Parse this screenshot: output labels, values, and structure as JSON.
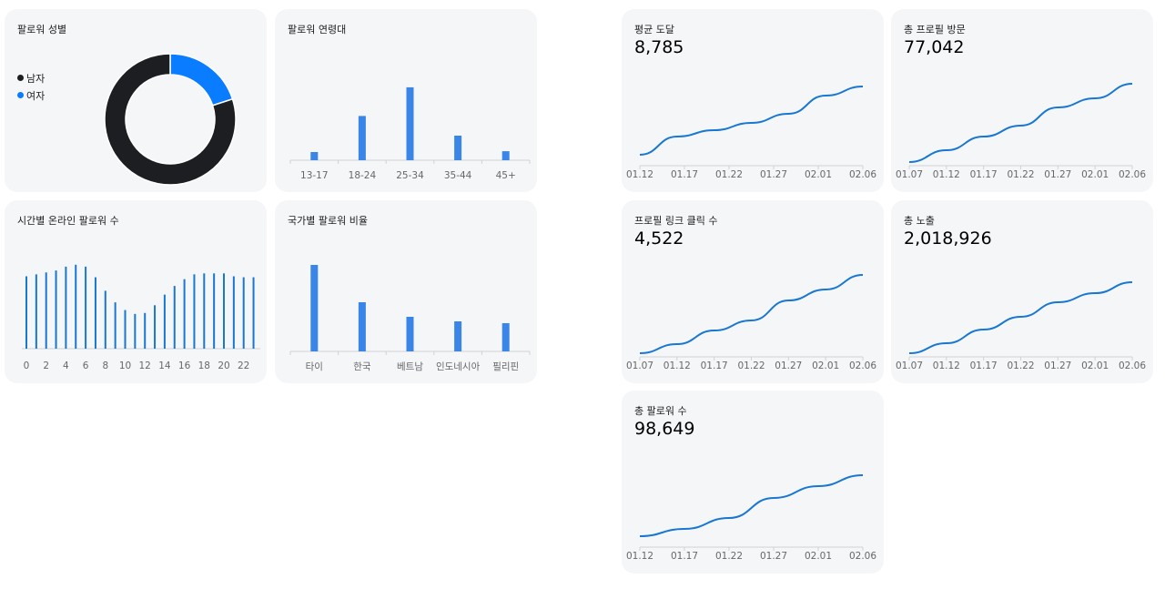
{
  "colors": {
    "accent": "#1877d2",
    "bar": "#3a86e8",
    "dark": "#1c1e21",
    "axis": "#cfd3d8"
  },
  "gender_card": {
    "title": "팔로워 성별",
    "legend": [
      {
        "label": "남자",
        "color": "#1c1e21"
      },
      {
        "label": "여자",
        "color": "#0a7cff"
      }
    ],
    "chart_data": {
      "type": "pie",
      "categories": [
        "남자",
        "여자"
      ],
      "values": [
        80,
        20
      ]
    }
  },
  "age_card": {
    "title": "팔로워 연령대",
    "chart_data": {
      "type": "bar",
      "categories": [
        "13-17",
        "18-24",
        "25-34",
        "35-44",
        "45+"
      ],
      "values": [
        10,
        54,
        89,
        30,
        11
      ]
    }
  },
  "hourly_card": {
    "title": "시간별 온라인 팔로워 수",
    "chart_data": {
      "type": "bar",
      "x": [
        0,
        1,
        2,
        3,
        4,
        5,
        6,
        7,
        8,
        9,
        10,
        11,
        12,
        13,
        14,
        15,
        16,
        17,
        18,
        19,
        20,
        21,
        22,
        23
      ],
      "tick_labels": [
        "0",
        "2",
        "4",
        "6",
        "8",
        "10",
        "12",
        "14",
        "16",
        "18",
        "20",
        "22"
      ],
      "values": [
        75,
        77,
        79,
        81,
        85,
        87,
        85,
        74,
        60,
        48,
        40,
        36,
        37,
        45,
        56,
        65,
        72,
        77,
        78,
        78,
        78,
        75,
        74,
        74
      ]
    }
  },
  "country_card": {
    "title": "국가별 팔로워 비율",
    "chart_data": {
      "type": "bar",
      "categories": [
        "타이",
        "한국",
        "베트남",
        "인도네시아",
        "필리핀"
      ],
      "values": [
        95,
        54,
        38,
        33,
        31
      ]
    }
  },
  "metrics": [
    {
      "title": "평균 도달",
      "value": "8,785",
      "chart_data": {
        "type": "line",
        "x_ticks": [
          "01.12",
          "01.17",
          "01.22",
          "01.27",
          "02.01",
          "02.06"
        ],
        "values": [
          10,
          30,
          37,
          45,
          55,
          75,
          85
        ]
      }
    },
    {
      "title": "총 프로필 방문",
      "value": "77,042",
      "chart_data": {
        "type": "line",
        "x_ticks": [
          "01.07",
          "01.12",
          "01.17",
          "01.22",
          "01.27",
          "02.01",
          "02.06"
        ],
        "values": [
          2,
          15,
          30,
          42,
          62,
          72,
          88
        ]
      }
    },
    {
      "title": "프로필 링크 클릭 수",
      "value": "4,522",
      "chart_data": {
        "type": "line",
        "x_ticks": [
          "01.07",
          "01.12",
          "01.17",
          "01.22",
          "01.27",
          "02.01",
          "02.06"
        ],
        "values": [
          2,
          12,
          27,
          38,
          60,
          72,
          88
        ]
      }
    },
    {
      "title": "총 노출",
      "value": "2,018,926",
      "chart_data": {
        "type": "line",
        "x_ticks": [
          "01.07",
          "01.12",
          "01.17",
          "01.22",
          "01.27",
          "02.01",
          "02.06"
        ],
        "values": [
          2,
          13,
          28,
          42,
          58,
          68,
          80
        ]
      }
    },
    {
      "title": "총 팔로워 수",
      "value": "98,649",
      "chart_data": {
        "type": "line",
        "x_ticks": [
          "01.12",
          "01.17",
          "01.22",
          "01.27",
          "02.01",
          "02.06"
        ],
        "values": [
          10,
          18,
          30,
          52,
          65,
          77
        ]
      }
    }
  ]
}
